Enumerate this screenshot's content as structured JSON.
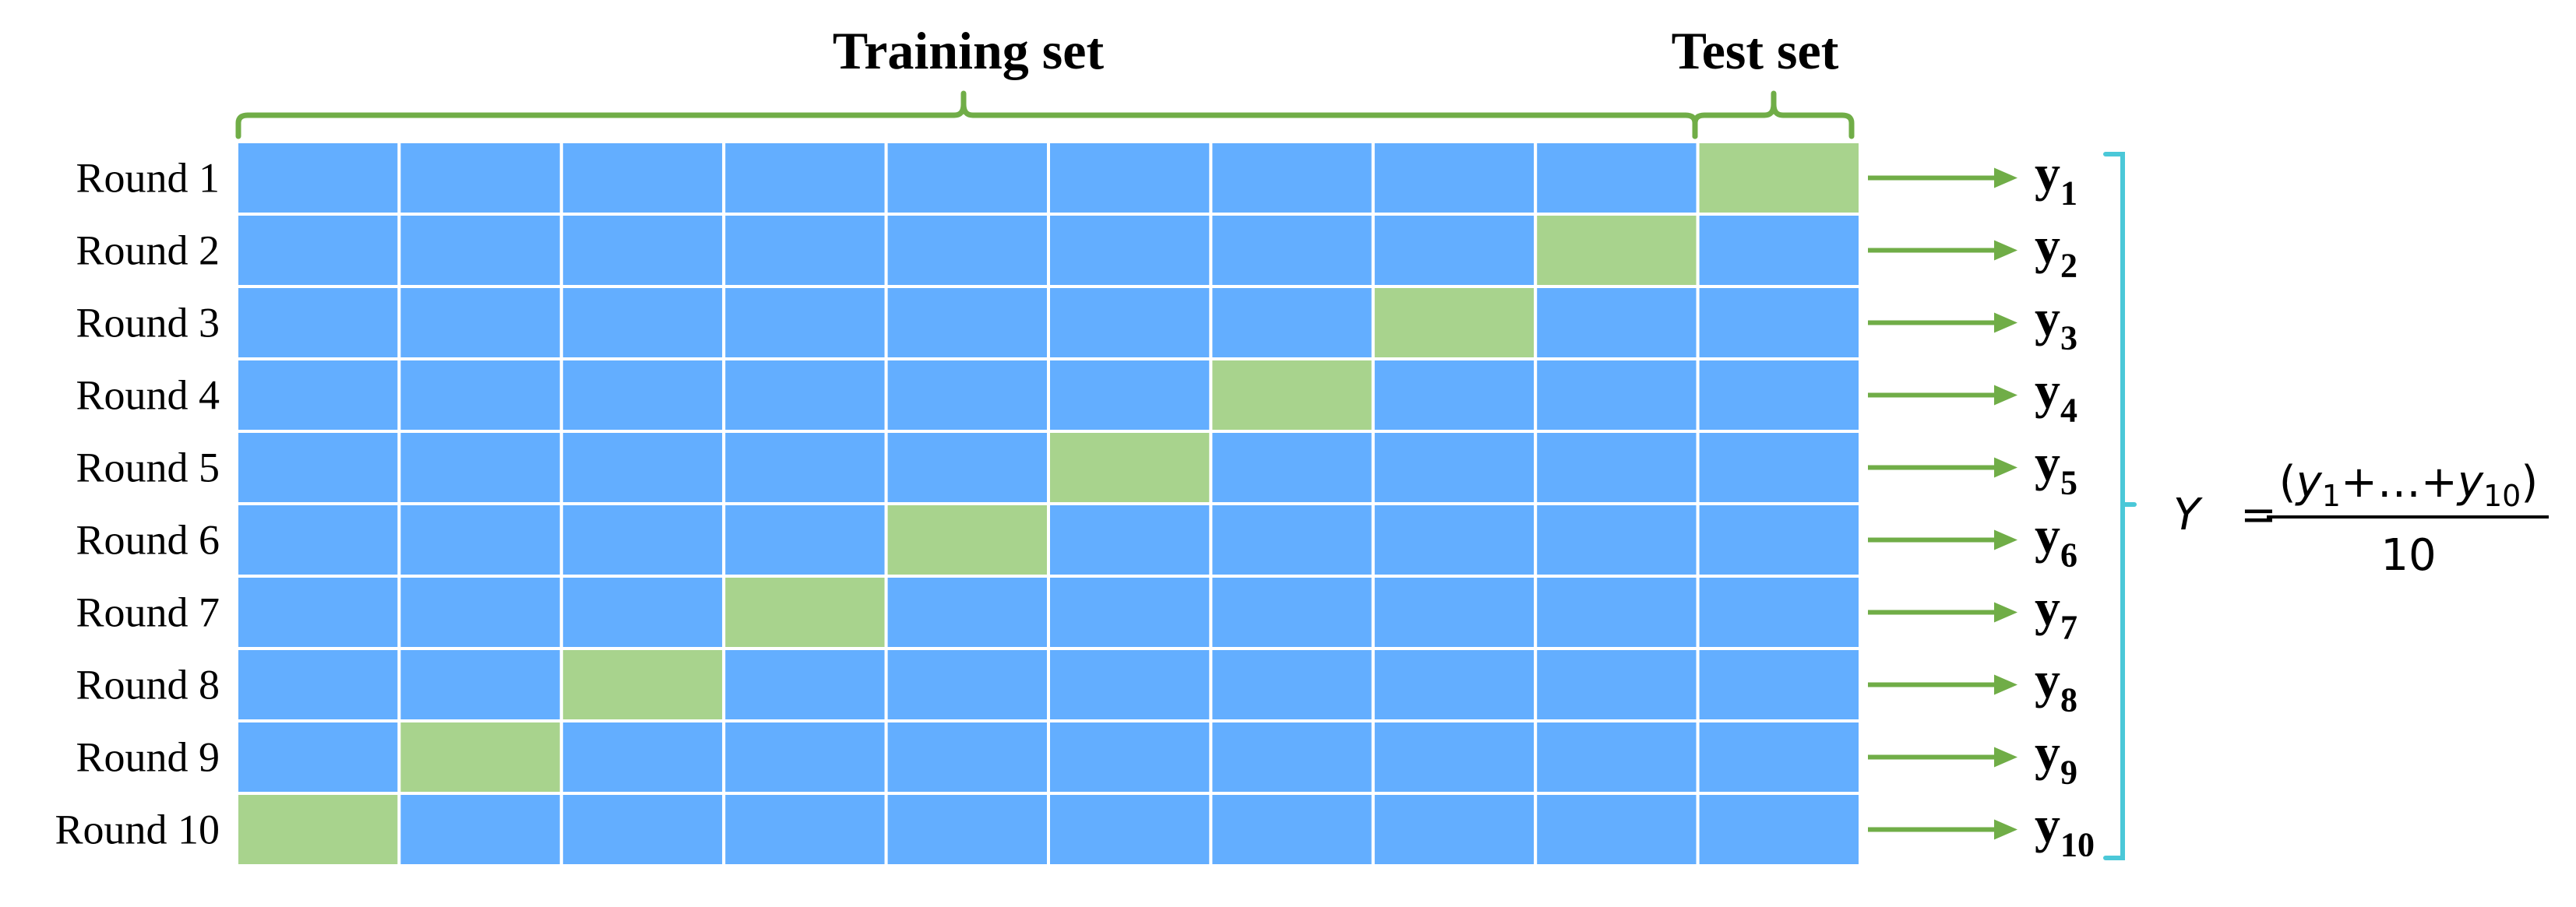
{
  "headers": {
    "training": "Training set",
    "test": "Test set"
  },
  "rounds": [
    {
      "label": "Round 1",
      "output": "y",
      "sub": "1",
      "test_fold": 10
    },
    {
      "label": "Round 2",
      "output": "y",
      "sub": "2",
      "test_fold": 9
    },
    {
      "label": "Round 3",
      "output": "y",
      "sub": "3",
      "test_fold": 8
    },
    {
      "label": "Round 4",
      "output": "y",
      "sub": "4",
      "test_fold": 7
    },
    {
      "label": "Round 5",
      "output": "y",
      "sub": "5",
      "test_fold": 6
    },
    {
      "label": "Round 6",
      "output": "y",
      "sub": "6",
      "test_fold": 5
    },
    {
      "label": "Round 7",
      "output": "y",
      "sub": "7",
      "test_fold": 4
    },
    {
      "label": "Round 8",
      "output": "y",
      "sub": "8",
      "test_fold": 3
    },
    {
      "label": "Round 9",
      "output": "y",
      "sub": "9",
      "test_fold": 2
    },
    {
      "label": "Round 10",
      "output": "y",
      "sub": "10",
      "test_fold": 1
    }
  ],
  "folds": 10,
  "formula": {
    "lhs": "Y",
    "equals": "=",
    "numerator": {
      "open": "(",
      "y": "y",
      "sub1": "1",
      "plus1": "+",
      "dots": "…",
      "plus2": "+",
      "sub2": "10",
      "close": ")"
    },
    "denominator": "10"
  },
  "colors": {
    "train": "#63AEFF",
    "test": "#A8D38D",
    "brace": "#70AD47",
    "arrow": "#70AD47",
    "bracket": "#4BC8D8",
    "grid": "#FFFFFF",
    "text": "#000000"
  }
}
